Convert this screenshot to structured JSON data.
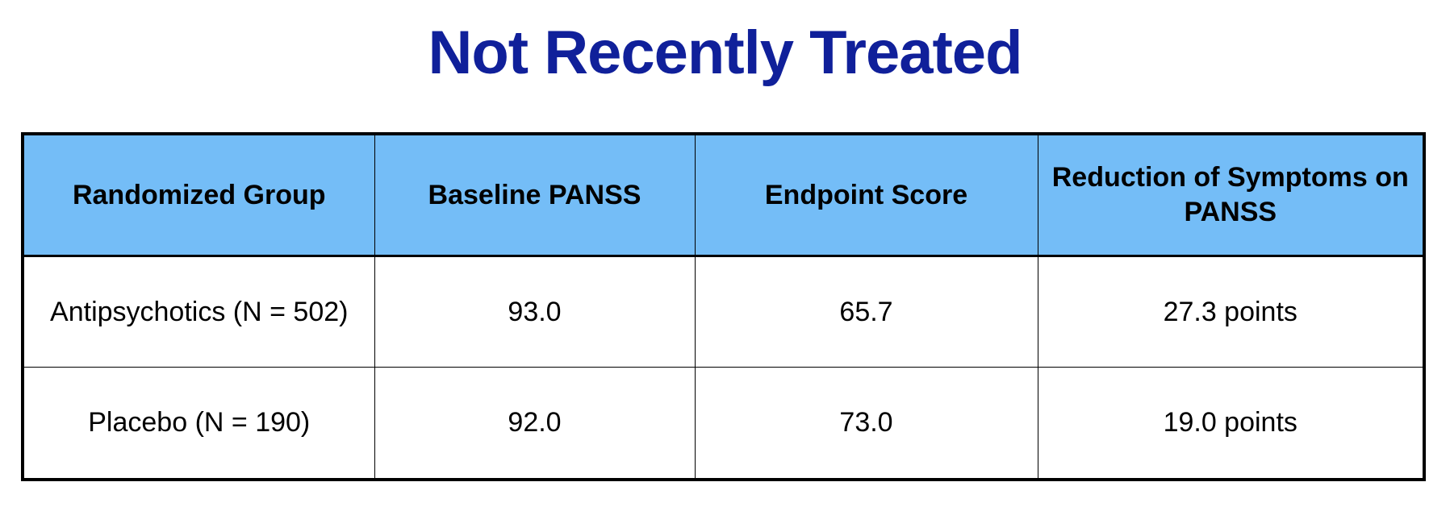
{
  "title": "Not Recently Treated",
  "table": {
    "headers": [
      "Randomized Group",
      "Baseline PANSS",
      "Endpoint Score",
      "Reduction of Symptoms on PANSS"
    ],
    "rows": [
      [
        "Antipsychotics (N = 502)",
        "93.0",
        "65.7",
        "27.3 points"
      ],
      [
        "Placebo (N = 190)",
        "92.0",
        "73.0",
        "19.0 points"
      ]
    ]
  },
  "colors": {
    "title": "#10209a",
    "header_background": "#74bdf7",
    "border": "#000000"
  }
}
